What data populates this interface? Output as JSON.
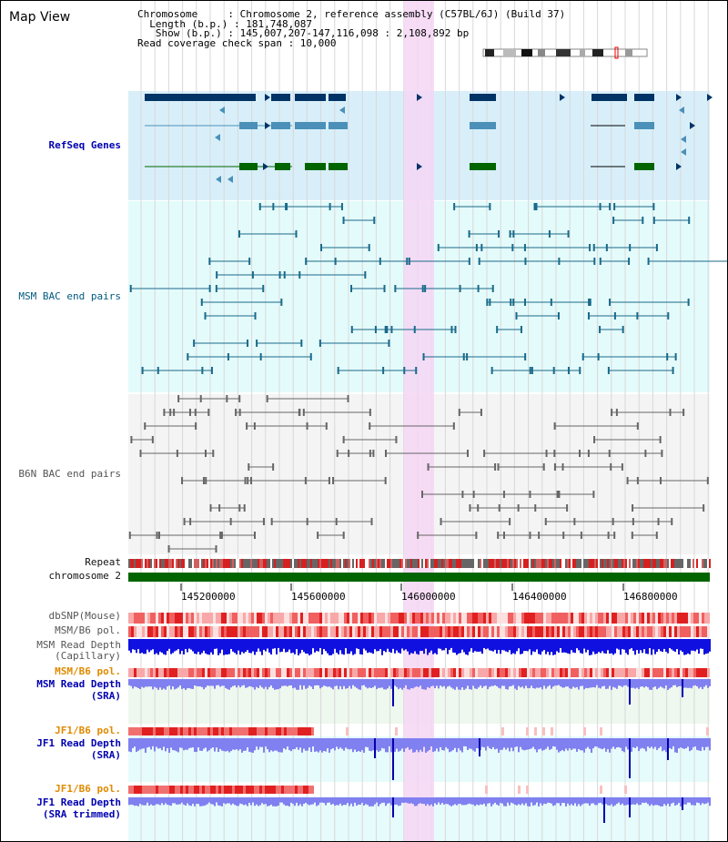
{
  "header": {
    "title": "Map View",
    "info_lines": [
      "Chromosome     : Chromosome 2, reference assembly (C57BL/6J) (Build 37)",
      "  Length (b.p.) : 181,748,087",
      "   Show (b.p.) : 145,007,207-147,116,098 : 2,108,892 bp",
      "Read coverage check span : 10,000"
    ]
  },
  "tracks": {
    "refseq": "RefSeq Genes",
    "msm_bac": "MSM BAC end pairs",
    "b6n_bac": "B6N BAC end pairs",
    "repeat": "Repeat",
    "chromosome": "chromosome 2",
    "dbsnp": "dbSNP(Mouse)",
    "msm_b6_pol_1": "MSM/B6 pol.",
    "msm_read_depth_cap_1": "MSM Read Depth",
    "msm_read_depth_cap_2": "(Capillary)",
    "msm_b6_pol_2": "MSM/B6 pol.",
    "msm_read_depth_sra_1": "MSM Read Depth",
    "msm_read_depth_sra_2": "(SRA)",
    "jf1_b6_pol_1": "JF1/B6 pol.",
    "jf1_read_depth_sra_1": "JF1 Read Depth",
    "jf1_read_depth_sra_2": "(SRA)",
    "jf1_b6_pol_2": "JF1/B6 pol.",
    "jf1_read_depth_trim_1": "JF1 Read Depth",
    "jf1_read_depth_trim_2": "(SRA trimmed)"
  },
  "axis": {
    "ticks": [
      "145200000",
      "145600000",
      "146000000",
      "146400000",
      "146800000"
    ]
  },
  "colors": {
    "refseq_bg": "#d8effa",
    "bac_bg": "#e4fbfb",
    "highlight": "#f6d6f4",
    "chromosome_bar": "#006400",
    "gene_dark": "#003366",
    "gene_mid": "#4a90b8",
    "gene_green": "#006400",
    "depth_blue": "#1010e0",
    "depth_sra": "#8080f0"
  }
}
